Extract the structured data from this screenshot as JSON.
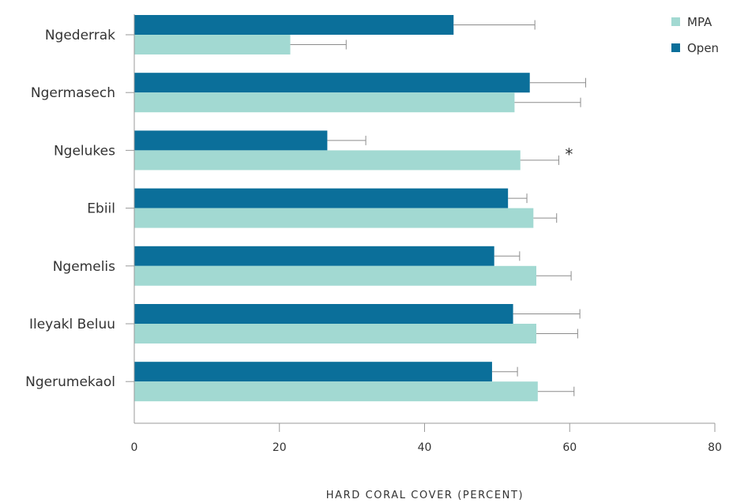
{
  "chart_data": {
    "type": "bar",
    "orientation": "horizontal",
    "categories": [
      "Ngederrak",
      "Ngermasech",
      "Ngelukes",
      "Ebiil",
      "Ngemelis",
      "Ileyakl Beluu",
      "Ngerumekaol"
    ],
    "series": [
      {
        "name": "Open",
        "color": "#0b6f9a",
        "values": [
          44.0,
          54.5,
          26.6,
          51.5,
          49.6,
          52.2,
          49.3
        ],
        "error_upper": [
          55.2,
          62.2,
          31.9,
          54.1,
          53.1,
          61.4,
          52.8
        ]
      },
      {
        "name": "MPA",
        "color": "#a2d9d2",
        "values": [
          21.5,
          52.4,
          53.2,
          55.0,
          55.4,
          55.4,
          55.6
        ],
        "error_upper": [
          29.2,
          61.5,
          58.5,
          58.2,
          60.2,
          61.1,
          60.6
        ]
      }
    ],
    "annotations": [
      {
        "text": "*",
        "category": "Ngelukes",
        "series": "MPA",
        "x": 59.9
      }
    ],
    "xlabel": "HARD CORAL COVER (PERCENT)",
    "ylabel": "",
    "title": "",
    "xlim": [
      0,
      80
    ],
    "xticks": [
      "0",
      "20",
      "40",
      "60",
      "80"
    ],
    "grid": false,
    "legend": {
      "position": "top-right",
      "entries": [
        "MPA",
        "Open"
      ]
    }
  }
}
